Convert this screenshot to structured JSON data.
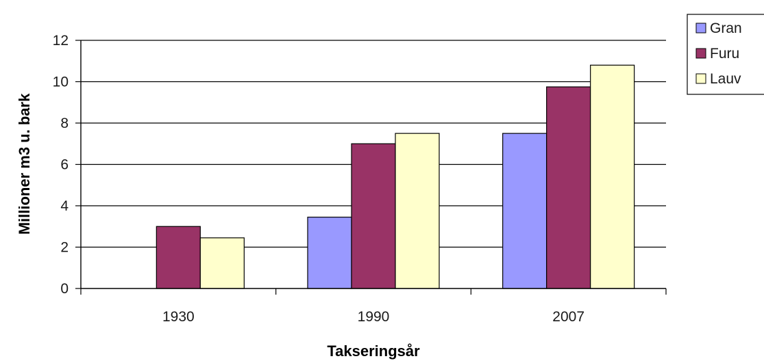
{
  "chart_data": {
    "type": "bar",
    "title": "",
    "xlabel": "Takseringsår",
    "ylabel": "Millioner m3 u. bark",
    "categories": [
      "1930",
      "1990",
      "2007"
    ],
    "series": [
      {
        "name": "Gran",
        "values": [
          0,
          3.45,
          7.5
        ],
        "color": "#9999ff"
      },
      {
        "name": "Furu",
        "values": [
          3.0,
          7.0,
          9.75
        ],
        "color": "#993366"
      },
      {
        "name": "Lauv",
        "values": [
          2.45,
          7.5,
          10.8
        ],
        "color": "#ffffcc"
      }
    ],
    "ylim": [
      0,
      12
    ],
    "yticks": [
      "0",
      "2",
      "4",
      "6",
      "8",
      "10",
      "12"
    ],
    "grid": true,
    "legend_position": "right"
  }
}
